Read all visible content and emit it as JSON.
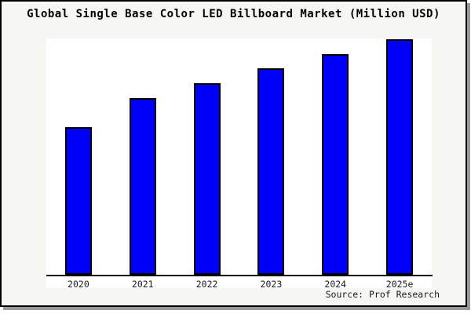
{
  "title": "Global Single Base Color LED Billboard Market (Million USD)",
  "source_note": "Source: Prof Research",
  "colors": {
    "bar_fill": "#0000f8",
    "bar_border": "#000000",
    "plot_background": "#ffffff",
    "figure_background": "#f6f6f2",
    "frame_border": "#000000",
    "frame_shadow": "#9a9a9a",
    "axis_line": "#000000",
    "text": "#000000"
  },
  "chart_data": {
    "type": "bar",
    "title": "Global Single Base Color LED Billboard Market (Million USD)",
    "categories": [
      "2020",
      "2021",
      "2022",
      "2023",
      "2024",
      "2025e"
    ],
    "values": [
      188,
      225,
      244,
      263,
      281,
      300
    ],
    "value_note": "relative bar heights (pixels above baseline); no y-axis scale, gridlines or data labels are shown",
    "xlabel": "",
    "ylabel": "",
    "ylim": [
      0,
      318
    ],
    "grid": false,
    "legend": false,
    "source": "Source: Prof Research"
  }
}
